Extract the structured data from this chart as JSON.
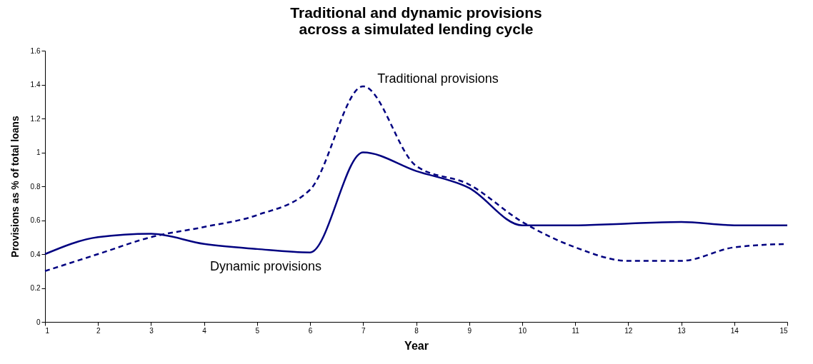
{
  "chart_data": {
    "type": "line",
    "title": [
      "Traditional and dynamic provisions",
      "across a simulated lending cycle"
    ],
    "xlabel": "Year",
    "ylabel": "Provisions as % of total loans",
    "x": [
      1,
      2,
      3,
      4,
      5,
      6,
      7,
      8,
      9,
      10,
      11,
      12,
      13,
      14,
      15
    ],
    "series": [
      {
        "name": "Traditional provisions",
        "color": "#000080",
        "line_style": "dashed",
        "values": [
          0.3,
          0.4,
          0.5,
          0.56,
          0.63,
          0.78,
          1.39,
          0.92,
          0.81,
          0.59,
          0.44,
          0.36,
          0.36,
          0.44,
          0.46
        ]
      },
      {
        "name": "Dynamic provisions",
        "color": "#000080",
        "line_style": "solid",
        "values": [
          0.4,
          0.5,
          0.52,
          0.46,
          0.43,
          0.41,
          1.0,
          0.89,
          0.79,
          0.57,
          0.57,
          0.58,
          0.59,
          0.57,
          0.57
        ]
      }
    ],
    "xlim": [
      1,
      15
    ],
    "xticks": [
      1,
      2,
      3,
      4,
      5,
      6,
      7,
      8,
      9,
      10,
      11,
      12,
      13,
      14,
      15
    ],
    "ylim": [
      0,
      1.6
    ],
    "yticks": [
      0,
      0.2,
      0.4,
      0.6,
      0.8,
      1,
      1.2,
      1.4,
      1.6
    ],
    "grid": false,
    "legend": false,
    "marker": "none"
  }
}
